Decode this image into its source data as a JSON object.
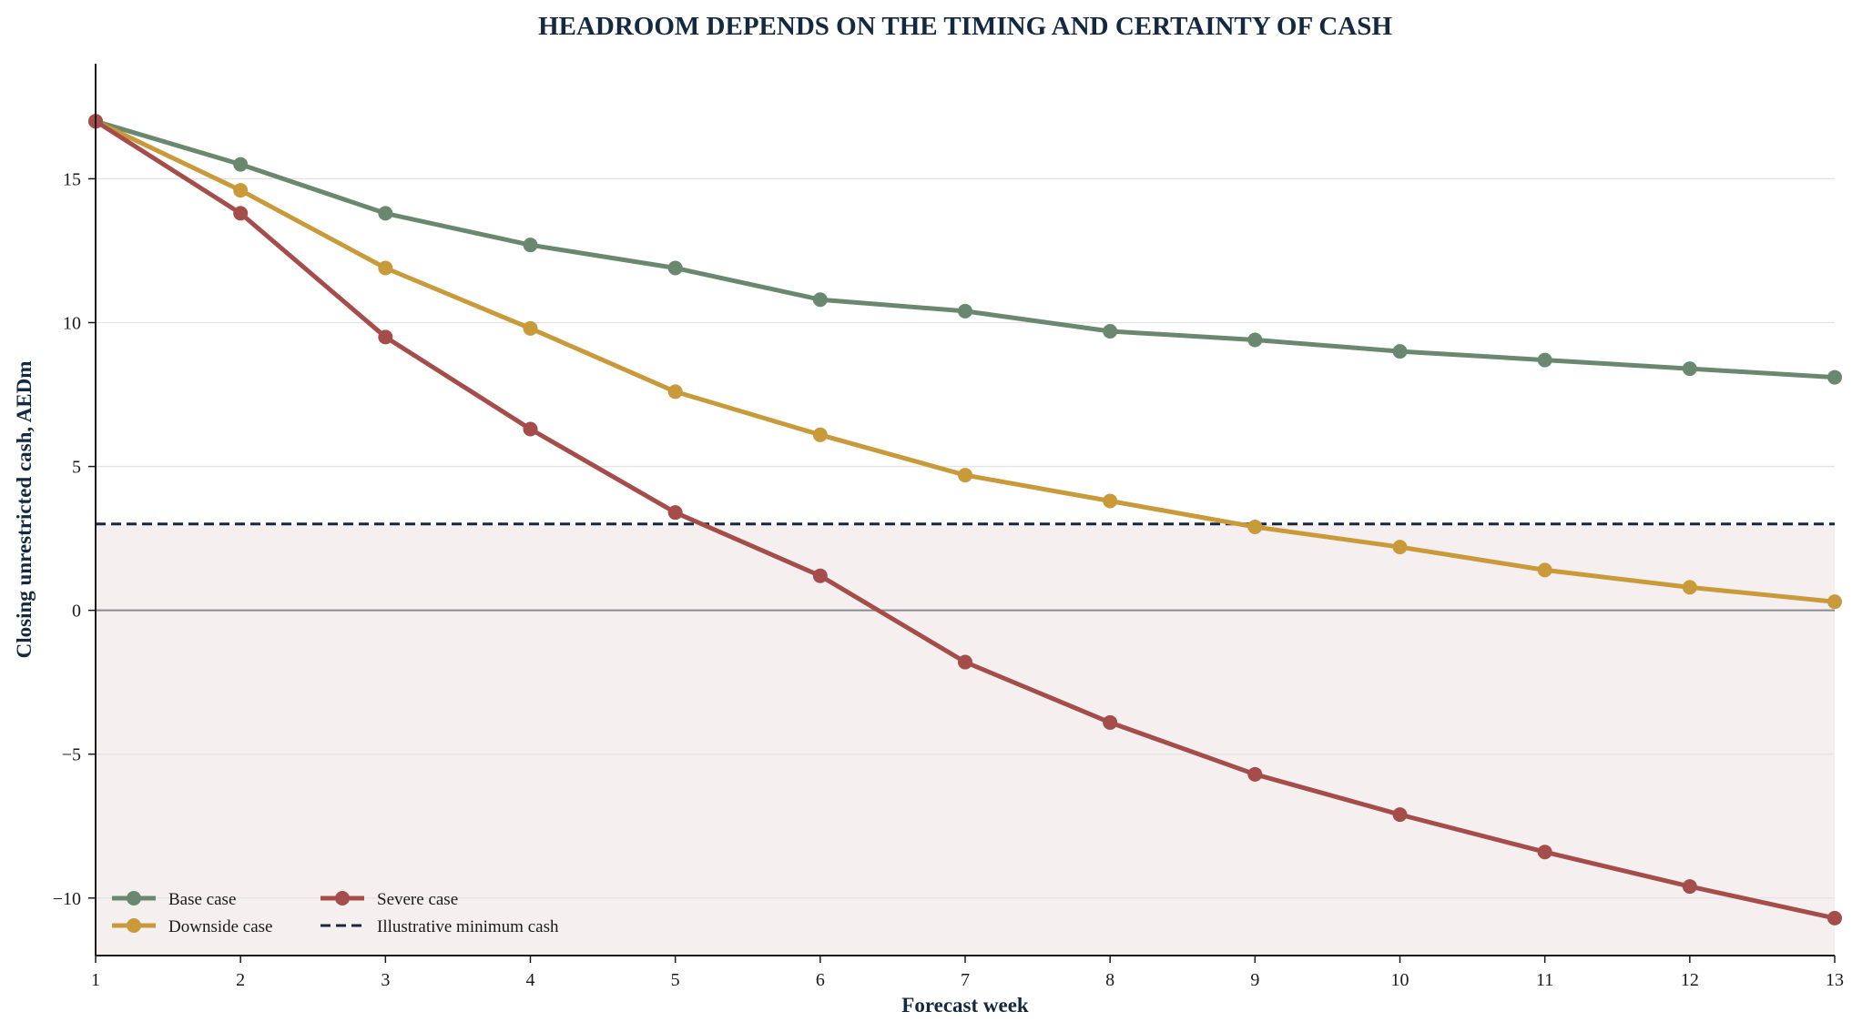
{
  "chart_data": {
    "type": "line",
    "title": "HEADROOM DEPENDS ON THE TIMING AND CERTAINTY OF CASH",
    "xlabel": "Forecast week",
    "ylabel": "Closing unrestricted cash, AEDm",
    "x": [
      1,
      2,
      3,
      4,
      5,
      6,
      7,
      8,
      9,
      10,
      11,
      12,
      13
    ],
    "xticks": [
      "1",
      "2",
      "3",
      "4",
      "5",
      "6",
      "7",
      "8",
      "9",
      "10",
      "11",
      "12",
      "13"
    ],
    "yticks": [
      {
        "value": -10,
        "label": "−10"
      },
      {
        "value": -5,
        "label": "−5"
      },
      {
        "value": 0,
        "label": "0"
      },
      {
        "value": 5,
        "label": "5"
      },
      {
        "value": 10,
        "label": "10"
      },
      {
        "value": 15,
        "label": "15"
      }
    ],
    "xlim": [
      1,
      13
    ],
    "ylim": [
      -12,
      19
    ],
    "grid": "horizontal",
    "series": [
      {
        "name": "Base case",
        "color": "#6a8870",
        "values": [
          17.0,
          15.5,
          13.8,
          12.7,
          11.9,
          10.8,
          10.4,
          9.7,
          9.4,
          9.0,
          8.7,
          8.4,
          8.1
        ]
      },
      {
        "name": "Downside case",
        "color": "#c99a3a",
        "values": [
          17.0,
          14.6,
          11.9,
          9.8,
          7.6,
          6.1,
          4.7,
          3.8,
          2.9,
          2.2,
          1.4,
          0.8,
          0.3
        ]
      },
      {
        "name": "Severe case",
        "color": "#a44d4b",
        "values": [
          17.0,
          13.8,
          9.5,
          6.3,
          3.4,
          1.2,
          -1.8,
          -3.9,
          -5.7,
          -7.1,
          -8.4,
          -9.6,
          -10.7
        ]
      }
    ],
    "threshold": {
      "name": "Illustrative minimum cash",
      "value": 3.0,
      "color": "#14283f",
      "style": "dashed"
    },
    "zero_line_color": "#888a90",
    "shaded_region_color": "#f6eff0",
    "legend_position": "lower-left"
  }
}
